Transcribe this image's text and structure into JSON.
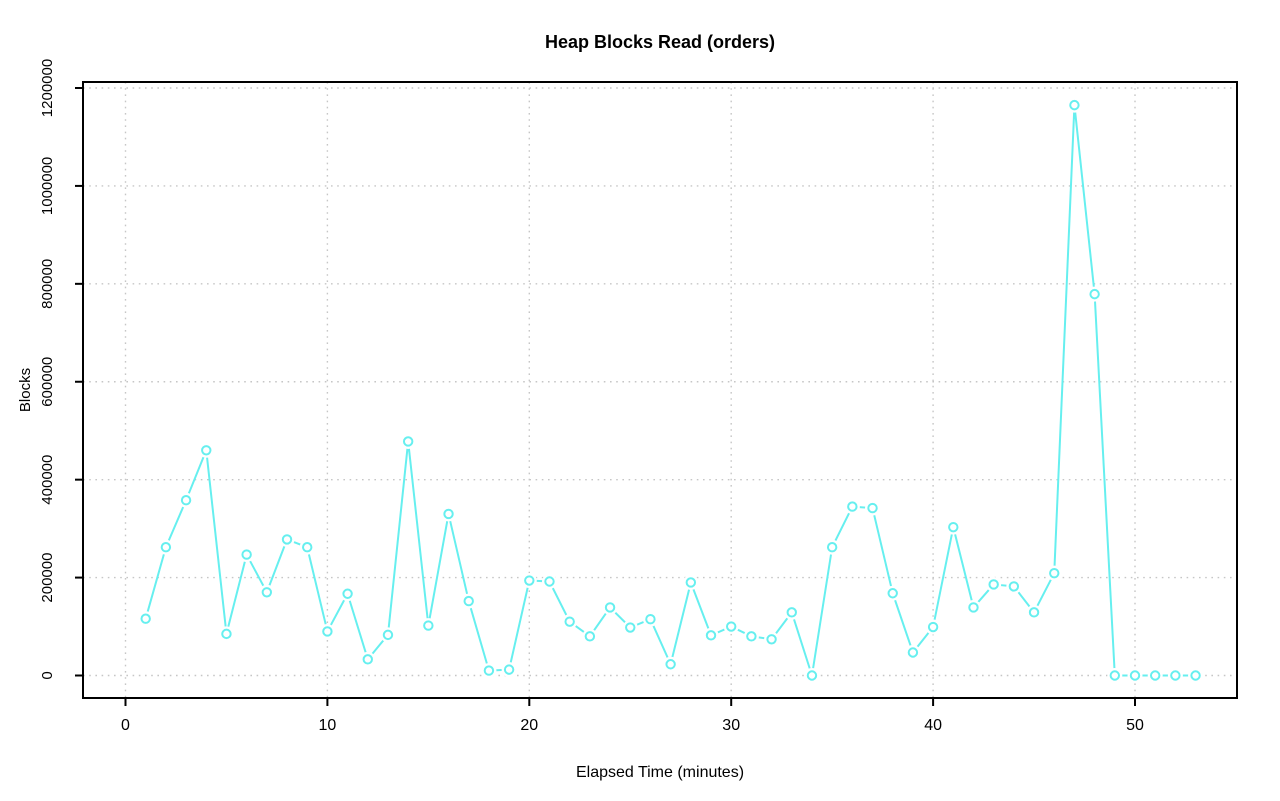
{
  "chart_data": {
    "type": "line",
    "title": "Heap Blocks Read (orders)",
    "xlabel": "Elapsed Time (minutes)",
    "ylabel": "Blocks",
    "legend": "none",
    "grid": true,
    "marker": "open-circle",
    "x_ticks": [
      0,
      10,
      20,
      30,
      40,
      50
    ],
    "y_ticks": [
      0,
      200000,
      400000,
      600000,
      800000,
      1000000,
      1200000
    ],
    "xlim": [
      -2.1,
      55.1
    ],
    "ylim": [
      -46000,
      1212000
    ],
    "series": [
      {
        "name": "orders-heap-blocks-read",
        "x": [
          1,
          2,
          3,
          4,
          5,
          6,
          7,
          8,
          9,
          10,
          11,
          12,
          13,
          14,
          15,
          16,
          17,
          18,
          19,
          20,
          21,
          22,
          23,
          24,
          25,
          26,
          27,
          28,
          29,
          30,
          31,
          32,
          33,
          34,
          35,
          36,
          37,
          38,
          39,
          40,
          41,
          42,
          43,
          44,
          45,
          46,
          47,
          48,
          49,
          50,
          51,
          52,
          53
        ],
        "values": [
          116000,
          262000,
          358000,
          460000,
          85000,
          247000,
          170000,
          278000,
          262000,
          90000,
          167000,
          33000,
          83000,
          478000,
          102000,
          330000,
          152000,
          10000,
          12000,
          194000,
          192000,
          110000,
          80000,
          139000,
          98000,
          115000,
          23000,
          190000,
          82000,
          100000,
          80000,
          74000,
          129000,
          0,
          262000,
          345000,
          342000,
          168000,
          47000,
          99000,
          303000,
          139000,
          186000,
          182000,
          129000,
          209000,
          1165000,
          779000,
          0,
          0,
          0,
          0,
          0
        ]
      }
    ],
    "colors": {
      "line": "#66EFEF",
      "grid": "#C6C6C6",
      "axis": "#000000",
      "text": "#000000",
      "background": "#FFFFFF"
    }
  }
}
